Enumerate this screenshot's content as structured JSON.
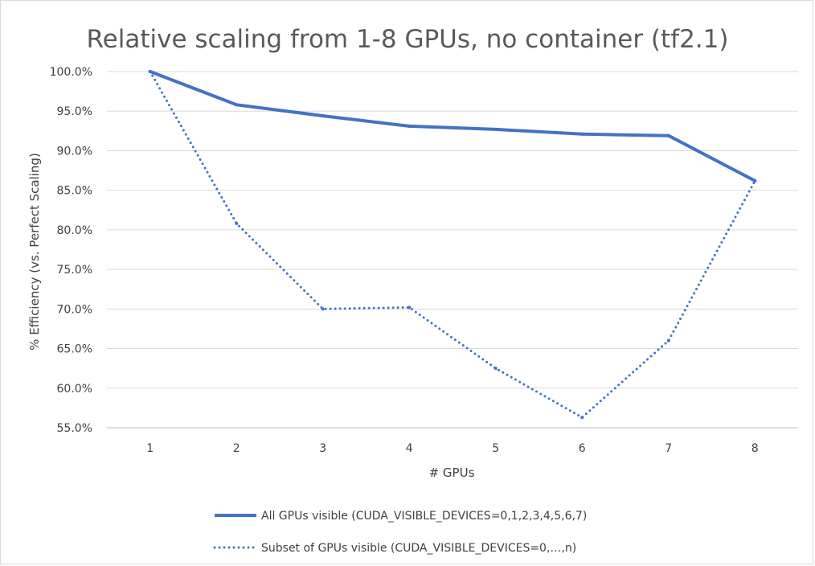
{
  "chart_data": {
    "type": "line",
    "title": "Relative scaling from 1-8 GPUs, no container (tf2.1)",
    "xlabel": "# GPUs",
    "ylabel": "% Efficiency (vs. Perfect Scaling)",
    "categories": [
      "1",
      "2",
      "3",
      "4",
      "5",
      "6",
      "7",
      "8"
    ],
    "ylim": [
      55,
      100
    ],
    "ytick_step": 5,
    "ytick_labels": [
      "55.0%",
      "60.0%",
      "65.0%",
      "70.0%",
      "75.0%",
      "80.0%",
      "85.0%",
      "90.0%",
      "95.0%",
      "100.0%"
    ],
    "grid": true,
    "legend_position": "bottom",
    "series": [
      {
        "name": "All GPUs visible (CUDA_VISIBLE_DEVICES=0,1,2,3,4,5,6,7)",
        "values": [
          100.0,
          95.8,
          94.4,
          93.1,
          92.7,
          92.1,
          91.9,
          86.2
        ],
        "color": "#4472c4",
        "style": "solid"
      },
      {
        "name": "Subset of GPUs visible (CUDA_VISIBLE_DEVICES=0,…,n)",
        "values": [
          100.0,
          80.8,
          70.0,
          70.2,
          62.5,
          56.3,
          66.0,
          86.2
        ],
        "color": "#4472c4",
        "style": "dotted"
      }
    ]
  }
}
